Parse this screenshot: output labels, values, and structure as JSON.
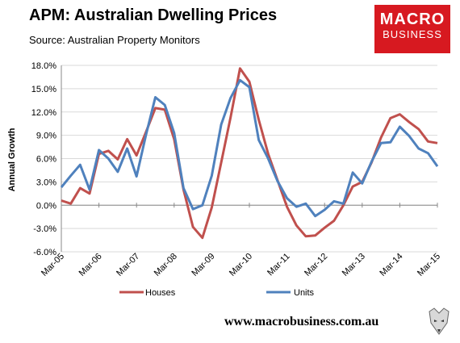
{
  "header": {
    "title": "APM: Australian Dwelling Prices",
    "subtitle": "Source: Australian Property Monitors"
  },
  "logo": {
    "line1": "MACRO",
    "line2": "BUSINESS"
  },
  "footer": {
    "website": "www.macrobusiness.com.au"
  },
  "colors": {
    "houses": "#c0504d",
    "units": "#4f81bd",
    "logo_bg": "#d71920"
  },
  "chart_data": {
    "type": "line",
    "title": "",
    "xlabel": "",
    "ylabel": "Annual Growth",
    "ylim": [
      -6.0,
      18.0
    ],
    "yticks": [
      "18.0%",
      "15.0%",
      "12.0%",
      "9.0%",
      "6.0%",
      "3.0%",
      "0.0%",
      "-3.0%",
      "-6.0%"
    ],
    "grid": true,
    "legend_position": "bottom",
    "xticks": [
      "Mar-05",
      "Mar-06",
      "Mar-07",
      "Mar-08",
      "Mar-09",
      "Mar-10",
      "Mar-11",
      "Mar-12",
      "Mar-13",
      "Mar-14",
      "Mar-15"
    ],
    "x": [
      "Mar-05",
      "Jun-05",
      "Sep-05",
      "Dec-05",
      "Mar-06",
      "Jun-06",
      "Sep-06",
      "Dec-06",
      "Mar-07",
      "Jun-07",
      "Sep-07",
      "Dec-07",
      "Mar-08",
      "Jun-08",
      "Sep-08",
      "Dec-08",
      "Mar-09",
      "Jun-09",
      "Sep-09",
      "Dec-09",
      "Mar-10",
      "Jun-10",
      "Sep-10",
      "Dec-10",
      "Mar-11",
      "Jun-11",
      "Sep-11",
      "Dec-11",
      "Mar-12",
      "Jun-12",
      "Sep-12",
      "Dec-12",
      "Mar-13",
      "Jun-13",
      "Sep-13",
      "Dec-13",
      "Mar-14",
      "Jun-14",
      "Sep-14",
      "Dec-14",
      "Mar-15"
    ],
    "series": [
      {
        "name": "Houses",
        "values": [
          0.6,
          0.2,
          2.2,
          1.5,
          6.6,
          7.0,
          5.9,
          8.5,
          6.4,
          9.4,
          12.5,
          12.3,
          8.5,
          2.0,
          -2.8,
          -4.2,
          -0.3,
          5.5,
          11.3,
          17.6,
          15.9,
          11.0,
          6.6,
          3.2,
          -0.2,
          -2.6,
          -4.0,
          -3.9,
          -2.9,
          -2.0,
          0.0,
          2.4,
          3.0,
          5.5,
          8.7,
          11.2,
          11.7,
          10.7,
          9.8,
          8.2,
          8.0
        ]
      },
      {
        "name": "Units",
        "values": [
          2.3,
          3.8,
          5.2,
          2.0,
          7.1,
          6.0,
          4.3,
          7.3,
          3.7,
          9.0,
          13.9,
          12.9,
          9.3,
          2.2,
          -0.5,
          0.0,
          3.8,
          10.4,
          13.8,
          16.1,
          15.2,
          8.4,
          6.0,
          3.1,
          0.9,
          -0.2,
          0.2,
          -1.4,
          -0.6,
          0.5,
          0.2,
          4.2,
          2.8,
          5.6,
          8.0,
          8.1,
          10.1,
          8.9,
          7.3,
          6.7,
          5.0
        ]
      }
    ]
  }
}
